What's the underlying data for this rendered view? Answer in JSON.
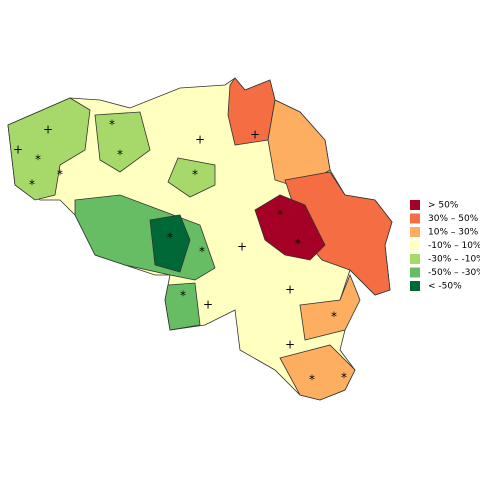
{
  "legend": [
    {
      "label": "> 50%",
      "color": "#a50026"
    },
    {
      "label": "30% – 50%",
      "color": "#f46d43"
    },
    {
      "label": "10% – 30%",
      "color": "#fdae61"
    },
    {
      "label": "-10% – 10%",
      "color": "#ffffbf"
    },
    {
      "label": "-30% – -10%",
      "color": "#a6d96a"
    },
    {
      "label": "-50% – -30%",
      "color": "#66bd63"
    },
    {
      "label": "< -50%",
      "color": "#006837"
    }
  ],
  "markers": [
    "+",
    "+",
    "*",
    "*",
    "*",
    "*",
    "*",
    "*",
    "+",
    "*",
    "*",
    "*",
    "*",
    "+",
    "+",
    "+",
    "+",
    "*",
    "*",
    "*",
    "*",
    "+"
  ]
}
